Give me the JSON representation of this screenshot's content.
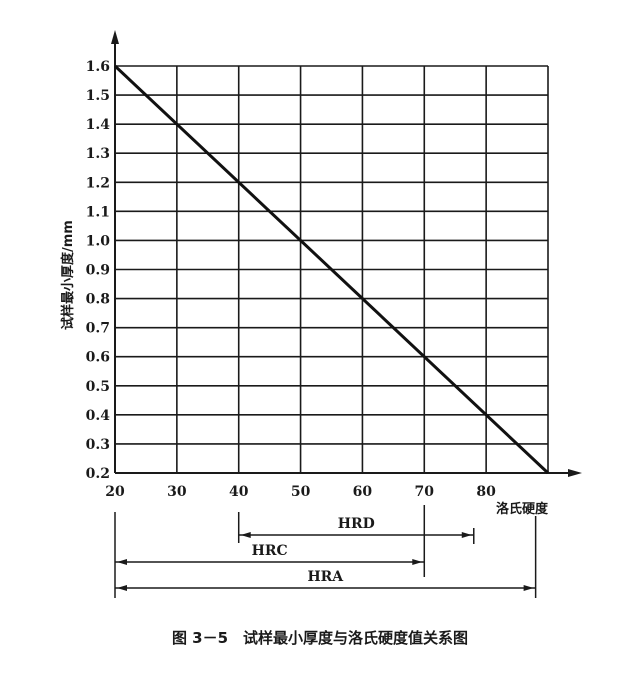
{
  "chart_data": {
    "type": "line",
    "title": "图 3－5　试样最小厚度与洛氏硬度值关系图",
    "xlabel": "洛氏硬度",
    "ylabel": "试样最小厚度/mm",
    "xlim": [
      20,
      90
    ],
    "ylim": [
      0.2,
      1.6
    ],
    "grid": true,
    "xticks": [
      "20",
      "30",
      "40",
      "50",
      "60",
      "70",
      "80"
    ],
    "yticks": [
      "0.2",
      "0.3",
      "0.4",
      "0.5",
      "0.6",
      "0.7",
      "0.8",
      "0.9",
      "1.0",
      "1.1",
      "1.2",
      "1.3",
      "1.4",
      "1.5",
      "1.6"
    ],
    "series": [
      {
        "name": "min thickness",
        "x": [
          20,
          90
        ],
        "y": [
          1.6,
          0.2
        ]
      }
    ],
    "ranges": [
      {
        "name": "HRD",
        "from": 40,
        "to": 78
      },
      {
        "name": "HRC",
        "from": 20,
        "to": 70
      },
      {
        "name": "HRA",
        "from": 20,
        "to": 88
      }
    ]
  }
}
